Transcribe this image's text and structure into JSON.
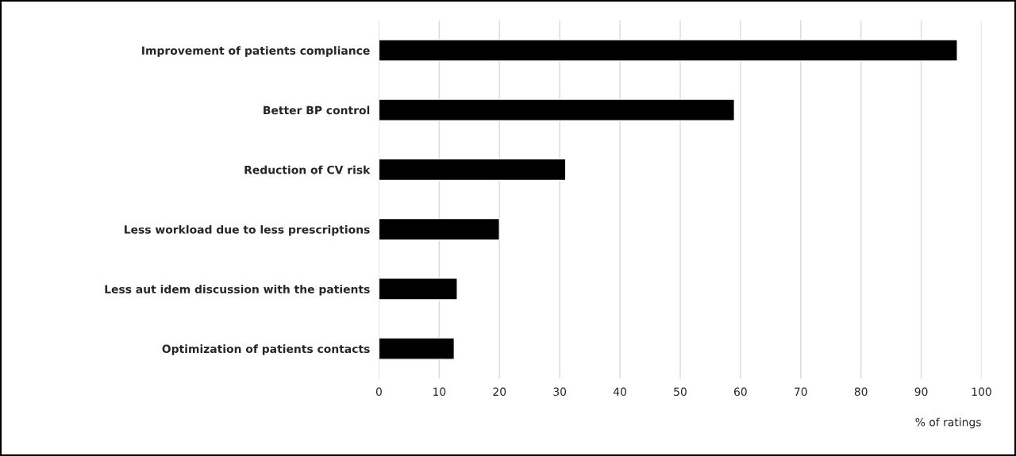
{
  "chart_data": {
    "type": "bar",
    "orientation": "horizontal",
    "xlabel": "% of ratings",
    "categories": [
      "Improvement of patients compliance",
      "Better BP control",
      "Reduction of CV risk",
      "Less workload due to less prescriptions",
      "Less aut idem discussion with the patients",
      "Optimization of patients contacts"
    ],
    "values": [
      96,
      59,
      31,
      20,
      13,
      12.5
    ],
    "color": "#000000",
    "xlim": [
      0,
      100
    ],
    "xticks": [
      0,
      10,
      20,
      30,
      40,
      50,
      60,
      70,
      80,
      90,
      100
    ],
    "grid": "x",
    "legend": false
  }
}
